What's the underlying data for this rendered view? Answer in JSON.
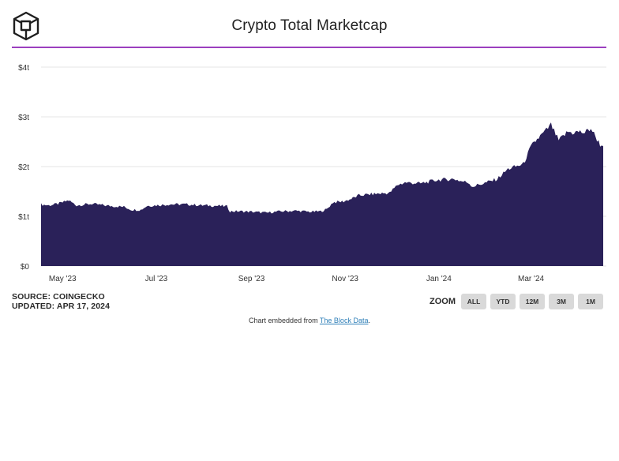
{
  "header": {
    "title": "Crypto Total Marketcap",
    "logo_icon": "the-block-cube-logo-icon"
  },
  "source": {
    "line1": "SOURCE: COINGECKO",
    "line2": "UPDATED: APR 17, 2024"
  },
  "zoom": {
    "label": "ZOOM",
    "buttons": [
      "ALL",
      "YTD",
      "12M",
      "3M",
      "1M"
    ]
  },
  "embed": {
    "prefix": "Chart embedded from ",
    "link_text": "The Block Data",
    "suffix": "."
  },
  "colors": {
    "area_fill": "#2a2159",
    "header_rule": "#9b3fbf",
    "gridline": "#e6e6e6",
    "zoom_button": "#d9d9d9",
    "link": "#2e7fb8"
  },
  "chart_data": {
    "type": "area",
    "title": "Crypto Total Marketcap",
    "xlabel": "",
    "ylabel": "",
    "y_unit": "USD trillions",
    "ylim": [
      0,
      4
    ],
    "yticks": [
      {
        "value": 0,
        "label": "$0"
      },
      {
        "value": 1,
        "label": "$1t"
      },
      {
        "value": 2,
        "label": "$2t"
      },
      {
        "value": 3,
        "label": "$3t"
      },
      {
        "value": 4,
        "label": "$4t"
      }
    ],
    "xlim": [
      "2023-04-17",
      "2024-04-17"
    ],
    "xticks": [
      {
        "date": "2023-05-01",
        "label": "May '23"
      },
      {
        "date": "2023-07-01",
        "label": "Jul '23"
      },
      {
        "date": "2023-09-01",
        "label": "Sep '23"
      },
      {
        "date": "2023-11-01",
        "label": "Nov '23"
      },
      {
        "date": "2024-01-01",
        "label": "Jan '24"
      },
      {
        "date": "2024-03-01",
        "label": "Mar '24"
      }
    ],
    "grid": true,
    "legend": "none",
    "series": [
      {
        "points": [
          [
            "2023-04-17",
            1.24
          ],
          [
            "2023-04-22",
            1.22
          ],
          [
            "2023-04-28",
            1.25
          ],
          [
            "2023-05-05",
            1.32
          ],
          [
            "2023-05-10",
            1.22
          ],
          [
            "2023-05-20",
            1.25
          ],
          [
            "2023-05-31",
            1.21
          ],
          [
            "2023-06-10",
            1.19
          ],
          [
            "2023-06-15",
            1.13
          ],
          [
            "2023-06-21",
            1.13
          ],
          [
            "2023-06-25",
            1.21
          ],
          [
            "2023-07-01",
            1.22
          ],
          [
            "2023-07-10",
            1.24
          ],
          [
            "2023-07-20",
            1.24
          ],
          [
            "2023-07-31",
            1.22
          ],
          [
            "2023-08-10",
            1.21
          ],
          [
            "2023-08-16",
            1.2
          ],
          [
            "2023-08-18",
            1.1
          ],
          [
            "2023-08-25",
            1.1
          ],
          [
            "2023-09-01",
            1.09
          ],
          [
            "2023-09-11",
            1.07
          ],
          [
            "2023-09-20",
            1.1
          ],
          [
            "2023-09-30",
            1.11
          ],
          [
            "2023-10-10",
            1.09
          ],
          [
            "2023-10-16",
            1.1
          ],
          [
            "2023-10-20",
            1.14
          ],
          [
            "2023-10-24",
            1.28
          ],
          [
            "2023-10-31",
            1.3
          ],
          [
            "2023-11-05",
            1.35
          ],
          [
            "2023-11-10",
            1.42
          ],
          [
            "2023-11-20",
            1.45
          ],
          [
            "2023-11-30",
            1.47
          ],
          [
            "2023-12-05",
            1.63
          ],
          [
            "2023-12-10",
            1.68
          ],
          [
            "2023-12-20",
            1.66
          ],
          [
            "2023-12-31",
            1.73
          ],
          [
            "2024-01-11",
            1.75
          ],
          [
            "2024-01-15",
            1.71
          ],
          [
            "2024-01-20",
            1.68
          ],
          [
            "2024-01-23",
            1.6
          ],
          [
            "2024-01-31",
            1.67
          ],
          [
            "2024-02-08",
            1.75
          ],
          [
            "2024-02-15",
            1.95
          ],
          [
            "2024-02-25",
            2.05
          ],
          [
            "2024-03-01",
            2.4
          ],
          [
            "2024-03-05",
            2.55
          ],
          [
            "2024-03-10",
            2.7
          ],
          [
            "2024-03-14",
            2.84
          ],
          [
            "2024-03-19",
            2.52
          ],
          [
            "2024-03-25",
            2.7
          ],
          [
            "2024-03-28",
            2.68
          ],
          [
            "2024-04-01",
            2.7
          ],
          [
            "2024-04-05",
            2.68
          ],
          [
            "2024-04-09",
            2.77
          ],
          [
            "2024-04-12",
            2.6
          ],
          [
            "2024-04-15",
            2.44
          ],
          [
            "2024-04-17",
            2.41
          ]
        ]
      }
    ]
  }
}
